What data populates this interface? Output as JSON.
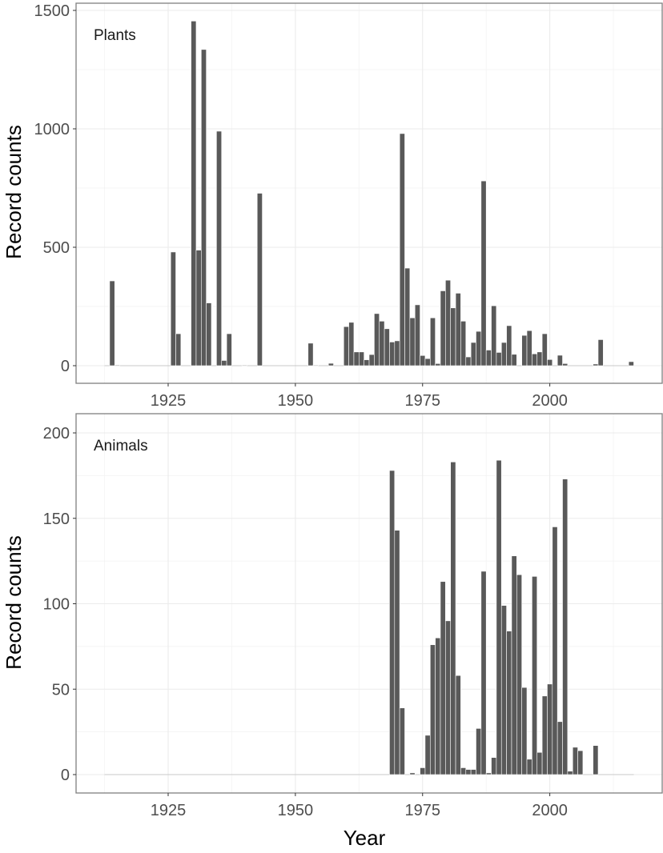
{
  "chart_data": [
    {
      "type": "bar",
      "panel_label": "Plants",
      "xlabel": "Year",
      "ylabel": "Record counts",
      "xlim": [
        1907,
        2022
      ],
      "ylim": [
        0,
        1500
      ],
      "xticks": [
        1925,
        1950,
        1975,
        2000
      ],
      "yticks": [
        0,
        500,
        1000,
        1500
      ],
      "grid": true,
      "x": [
        1914,
        1915,
        1926,
        1927,
        1930,
        1931,
        1932,
        1933,
        1935,
        1936,
        1937,
        1940,
        1943,
        1953,
        1954,
        1957,
        1960,
        1961,
        1962,
        1963,
        1964,
        1965,
        1966,
        1967,
        1968,
        1969,
        1970,
        1971,
        1972,
        1973,
        1974,
        1975,
        1976,
        1977,
        1978,
        1979,
        1980,
        1981,
        1982,
        1983,
        1984,
        1985,
        1986,
        1987,
        1988,
        1989,
        1990,
        1991,
        1992,
        1993,
        1995,
        1996,
        1997,
        1998,
        1999,
        2000,
        2002,
        2003,
        2009,
        2010,
        2016
      ],
      "values": [
        358,
        3,
        480,
        135,
        1455,
        488,
        1335,
        265,
        990,
        22,
        135,
        2,
        728,
        95,
        2,
        10,
        165,
        183,
        58,
        58,
        25,
        47,
        220,
        188,
        156,
        100,
        105,
        980,
        412,
        202,
        257,
        43,
        30,
        202,
        9,
        316,
        361,
        244,
        306,
        188,
        37,
        98,
        145,
        780,
        66,
        253,
        56,
        98,
        169,
        48,
        128,
        148,
        50,
        58,
        135,
        26,
        44,
        9,
        7,
        110,
        17
      ]
    },
    {
      "type": "bar",
      "panel_label": "Animals",
      "xlabel": "Year",
      "ylabel": "Record counts",
      "xlim": [
        1907,
        2022
      ],
      "ylim": [
        0,
        200
      ],
      "xticks": [
        1925,
        1950,
        1975,
        2000
      ],
      "yticks": [
        0,
        50,
        100,
        150,
        200
      ],
      "grid": true,
      "x": [
        1969,
        1970,
        1971,
        1973,
        1975,
        1976,
        1977,
        1978,
        1979,
        1980,
        1981,
        1982,
        1983,
        1984,
        1985,
        1986,
        1987,
        1988,
        1989,
        1990,
        1991,
        1992,
        1993,
        1994,
        1995,
        1996,
        1997,
        1998,
        1999,
        2000,
        2001,
        2002,
        2003,
        2004,
        2005,
        2006,
        2009
      ],
      "values": [
        178,
        143,
        39,
        1,
        4,
        23,
        76,
        80,
        113,
        90,
        183,
        58,
        4,
        3,
        3,
        27,
        119,
        1,
        10,
        184,
        99,
        84,
        128,
        117,
        51,
        9,
        116,
        13,
        46,
        53,
        145,
        31,
        173,
        2,
        16,
        14,
        17
      ]
    }
  ]
}
